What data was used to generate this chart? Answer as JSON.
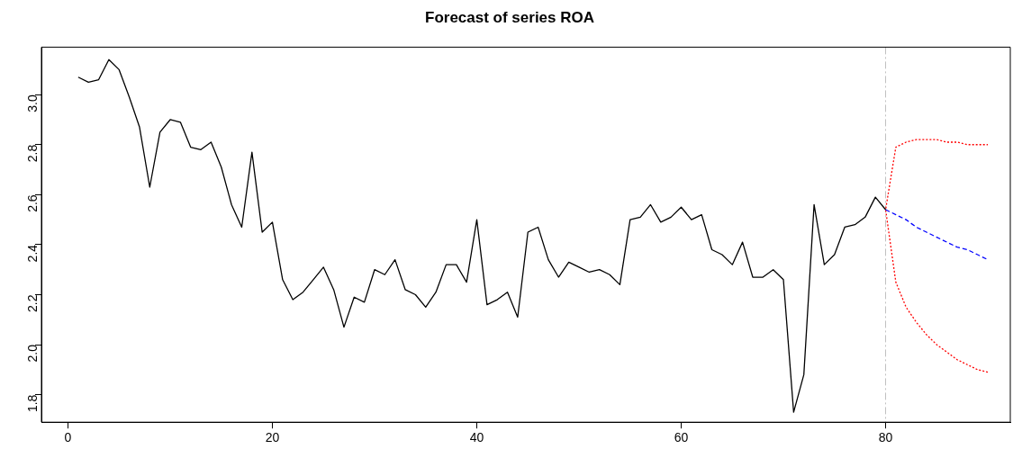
{
  "chart_data": {
    "type": "line",
    "title": "Forecast of series ROA",
    "xlim": [
      -2.6,
      92.2
    ],
    "xticks": [
      0,
      20,
      40,
      60,
      80
    ],
    "ylim": [
      1.69,
      3.19
    ],
    "yticks": [
      1.8,
      {
        "value": 2,
        "label": "2.0"
      },
      2.2,
      2.4,
      2.6,
      2.8,
      {
        "value": 3,
        "label": "3.0"
      }
    ],
    "grid": false,
    "legend": false,
    "marker": "none",
    "ref_lines": [
      {
        "axis": "x",
        "value": 80,
        "color": "#c0c0c0",
        "line_style": "dashed"
      }
    ],
    "series": [
      {
        "color": "#000000",
        "line_style": "solid",
        "x": [
          1,
          2,
          3,
          4,
          5,
          6,
          7,
          8,
          9,
          10,
          11,
          12,
          13,
          14,
          15,
          16,
          17,
          18,
          19,
          20,
          21,
          22,
          23,
          24,
          25,
          26,
          27,
          28,
          29,
          30,
          31,
          32,
          33,
          34,
          35,
          36,
          37,
          38,
          39,
          40,
          41,
          42,
          43,
          44,
          45,
          46,
          47,
          48,
          49,
          50,
          51,
          52,
          53,
          54,
          55,
          56,
          57,
          58,
          59,
          60,
          61,
          62,
          63,
          64,
          65,
          66,
          67,
          68,
          69,
          70,
          71,
          72,
          73,
          74,
          75,
          76,
          77,
          78,
          79,
          80
        ],
        "values": [
          3.07,
          3.05,
          3.06,
          3.14,
          3.1,
          2.99,
          2.87,
          2.63,
          2.85,
          2.9,
          2.89,
          2.79,
          2.78,
          2.81,
          2.71,
          2.56,
          2.47,
          2.77,
          2.45,
          2.49,
          2.26,
          2.18,
          2.21,
          2.26,
          2.31,
          2.22,
          2.07,
          2.19,
          2.17,
          2.3,
          2.28,
          2.34,
          2.22,
          2.2,
          2.15,
          2.21,
          2.32,
          2.32,
          2.25,
          2.5,
          2.16,
          2.18,
          2.21,
          2.11,
          2.45,
          2.47,
          2.34,
          2.27,
          2.33,
          2.31,
          2.29,
          2.3,
          2.28,
          2.24,
          2.5,
          2.51,
          2.56,
          2.49,
          2.51,
          2.55,
          2.5,
          2.52,
          2.38,
          2.36,
          2.32,
          2.41,
          2.27,
          2.27,
          2.3,
          2.26,
          1.73,
          1.88,
          2.56,
          2.32,
          2.36,
          2.47,
          2.48,
          2.51,
          2.59,
          2.54
        ]
      },
      {
        "color": "#0000ff",
        "line_style": "dashed",
        "x": [
          80,
          81,
          82,
          83,
          84,
          85,
          86,
          87,
          88,
          89,
          90
        ],
        "values": [
          2.54,
          2.52,
          2.5,
          2.47,
          2.45,
          2.43,
          2.41,
          2.39,
          2.38,
          2.36,
          2.34
        ]
      },
      {
        "color": "#ff0000",
        "line_style": "dotted",
        "x": [
          90,
          89,
          88,
          87,
          86,
          85,
          84,
          83,
          82,
          81,
          80,
          81,
          82,
          83,
          84,
          85,
          86,
          87,
          88,
          89,
          90
        ],
        "values": [
          1.89,
          1.9,
          1.92,
          1.94,
          1.97,
          2.0,
          2.04,
          2.09,
          2.15,
          2.25,
          2.54,
          2.79,
          2.81,
          2.82,
          2.82,
          2.82,
          2.81,
          2.81,
          2.8,
          2.8,
          2.8
        ]
      }
    ]
  }
}
